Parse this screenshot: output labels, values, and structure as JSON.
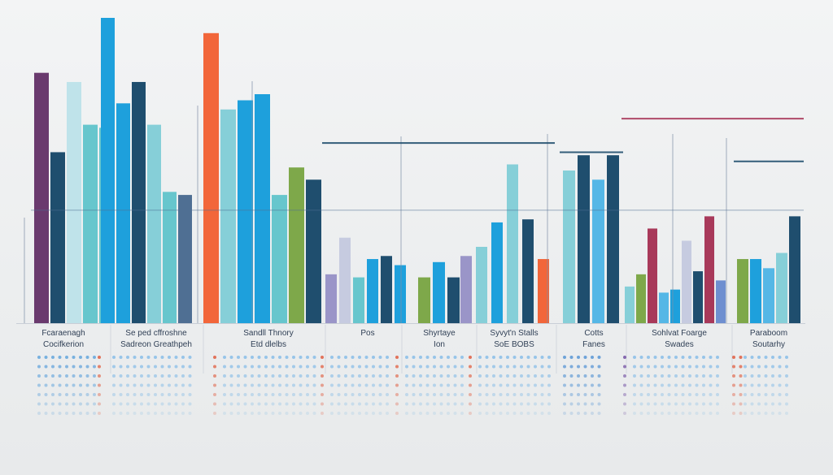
{
  "chart_data": {
    "type": "bar",
    "title": "",
    "xlabel": "",
    "ylabel": "",
    "grid": false,
    "legend": "none",
    "colors": {
      "purple": "#6a3a6e",
      "navy": "#1f4e6e",
      "teal": "#67c6cd",
      "lightteal": "#86cfd8",
      "paleteal": "#bfe3ea",
      "blue": "#1ea0dc",
      "skyblue": "#55b7e6",
      "orange": "#f2663a",
      "green": "#7ea84a",
      "lavender": "#9a95c8",
      "paleblue": "#c6cbe0",
      "crimson": "#a8395a",
      "periwinkle": "#6e8fd0",
      "slate": "#4f6f93"
    },
    "category_labels": [
      {
        "text": "Fcaraenagh",
        "group": 0
      },
      {
        "text": "Cocifkerion",
        "group": 0
      },
      {
        "text": "Se ped cffroshne",
        "group": 1
      },
      {
        "text": "Sadreon Greathpeh",
        "group": 1
      },
      {
        "text": "Sandll Thnory",
        "group": 2
      },
      {
        "text": "Etd dlelbs",
        "group": 2
      },
      {
        "text": "Pos",
        "group": 3
      },
      {
        "text": "Shyrtaye",
        "group": 4
      },
      {
        "text": "Ion",
        "group": 4
      },
      {
        "text": "Syvyt'n Stalls",
        "group": 5
      },
      {
        "text": "SoE BOBS",
        "group": 5
      },
      {
        "text": "Cotts",
        "group": 6
      },
      {
        "text": "Fanes",
        "group": 6
      },
      {
        "text": "Sohlvat Foarge",
        "group": 7
      },
      {
        "text": "Swades",
        "group": 7
      },
      {
        "text": "Paraboom",
        "group": 8
      },
      {
        "text": "Soutarhy",
        "group": 8
      }
    ],
    "series": [
      {
        "group": 0,
        "values": [
          {
            "v": 82,
            "c": "purple"
          },
          {
            "v": 56,
            "c": "navy"
          },
          {
            "v": 79,
            "c": "paleteal"
          },
          {
            "v": 65,
            "c": "teal"
          },
          {
            "v": 64,
            "c": "teal"
          }
        ]
      },
      {
        "group": 1,
        "values": [
          {
            "v": 100,
            "c": "blue"
          },
          {
            "v": 72,
            "c": "blue"
          },
          {
            "v": 79,
            "c": "navy"
          },
          {
            "v": 65,
            "c": "lightteal"
          },
          {
            "v": 43,
            "c": "teal"
          },
          {
            "v": 42,
            "c": "slate"
          }
        ]
      },
      {
        "group": 2,
        "values": [
          {
            "v": 95,
            "c": "orange"
          },
          {
            "v": 70,
            "c": "lightteal"
          },
          {
            "v": 73,
            "c": "blue"
          },
          {
            "v": 75,
            "c": "blue"
          },
          {
            "v": 42,
            "c": "teal"
          },
          {
            "v": 51,
            "c": "green"
          },
          {
            "v": 47,
            "c": "navy"
          }
        ]
      },
      {
        "group": 3,
        "values": [
          {
            "v": 16,
            "c": "lavender"
          },
          {
            "v": 28,
            "c": "paleblue"
          },
          {
            "v": 15,
            "c": "teal"
          },
          {
            "v": 21,
            "c": "blue"
          },
          {
            "v": 22,
            "c": "navy"
          },
          {
            "v": 19,
            "c": "blue"
          }
        ]
      },
      {
        "group": 4,
        "values": [
          {
            "v": 15,
            "c": "green"
          },
          {
            "v": 20,
            "c": "blue"
          },
          {
            "v": 15,
            "c": "navy"
          }
        ]
      },
      {
        "group": 5,
        "values": [
          {
            "v": 22,
            "c": "lavender"
          },
          {
            "v": 25,
            "c": "lightteal"
          },
          {
            "v": 33,
            "c": "blue"
          },
          {
            "v": 52,
            "c": "lightteal"
          },
          {
            "v": 34,
            "c": "navy"
          },
          {
            "v": 21,
            "c": "orange"
          }
        ]
      },
      {
        "group": 6,
        "values": [
          {
            "v": 50,
            "c": "lightteal"
          },
          {
            "v": 55,
            "c": "navy"
          },
          {
            "v": 47,
            "c": "skyblue"
          },
          {
            "v": 55,
            "c": "navy"
          }
        ]
      },
      {
        "group": 7,
        "values": [
          {
            "v": 12,
            "c": "lightteal"
          },
          {
            "v": 16,
            "c": "green"
          },
          {
            "v": 31,
            "c": "crimson"
          },
          {
            "v": 10,
            "c": "skyblue"
          },
          {
            "v": 11,
            "c": "blue"
          },
          {
            "v": 27,
            "c": "paleblue"
          },
          {
            "v": 17,
            "c": "navy"
          },
          {
            "v": 35,
            "c": "crimson"
          },
          {
            "v": 14,
            "c": "periwinkle"
          }
        ]
      },
      {
        "group": 8,
        "values": [
          {
            "v": 21,
            "c": "green"
          },
          {
            "v": 21,
            "c": "blue"
          },
          {
            "v": 18,
            "c": "skyblue"
          },
          {
            "v": 23,
            "c": "lightteal"
          },
          {
            "v": 35,
            "c": "navy"
          }
        ]
      }
    ],
    "reference_lines": [
      {
        "value": 59,
        "from_group": 3,
        "to_group": 5,
        "c": "navy"
      },
      {
        "value": 56,
        "from_group": 6,
        "to_group": 6,
        "c": "navy"
      },
      {
        "value": 67,
        "from_group": 7,
        "to_group": 8,
        "c": "crimson"
      },
      {
        "value": 53,
        "from_group": 8,
        "to_group": 8,
        "c": "navy"
      },
      {
        "value": 37,
        "from_group": 0,
        "to_group": 8,
        "c": "slate"
      }
    ],
    "ylim": [
      0,
      100
    ]
  }
}
